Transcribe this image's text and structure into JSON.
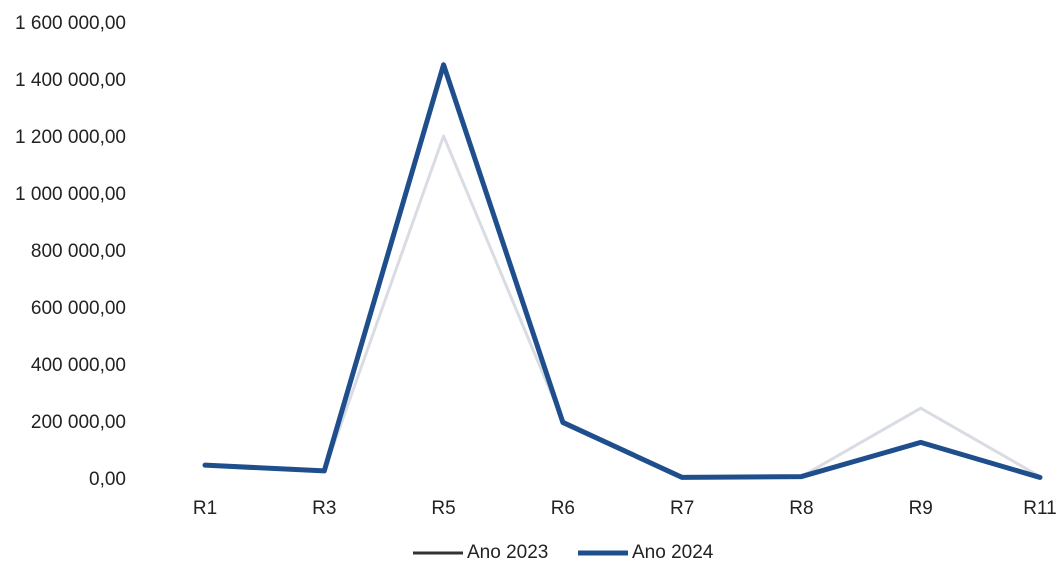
{
  "chart_data": {
    "type": "line",
    "categories": [
      "R1",
      "R3",
      "R5",
      "R6",
      "R7",
      "R8",
      "R9",
      "R11"
    ],
    "series": [
      {
        "name": "Ano 2023",
        "color": "#d9dce3",
        "values": [
          45000,
          25000,
          1200000,
          200000,
          5000,
          5000,
          245000,
          5000
        ]
      },
      {
        "name": "Ano 2024",
        "color": "#1f4e8c",
        "values": [
          45000,
          25000,
          1450000,
          195000,
          2000,
          5000,
          125000,
          2000
        ]
      }
    ],
    "yticks": [
      "0,00",
      "200 000,00",
      "400 000,00",
      "600 000,00",
      "800 000,00",
      "1 000 000,00",
      "1 200 000,00",
      "1 400 000,00",
      "1 600 000,00"
    ],
    "ylim": [
      0,
      1600000
    ],
    "grid": false,
    "legend_position": "bottom-center",
    "title": "",
    "xlabel": "",
    "ylabel": ""
  }
}
